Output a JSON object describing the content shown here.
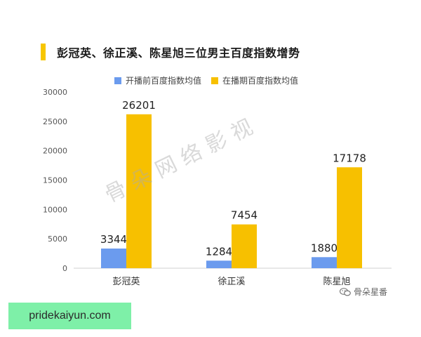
{
  "title": "彭冠英、徐正溪、陈星旭三位男主百度指数增势",
  "watermark": "骨朵网络影视",
  "brand_label": "骨朵星番",
  "site_label": "pridekaiyun.com",
  "colors": {
    "accent": "#F7C600",
    "series1": "#6B9BEE",
    "series2": "#F7C000"
  },
  "chart_data": {
    "type": "bar",
    "categories": [
      "彭冠英",
      "徐正溪",
      "陈星旭"
    ],
    "series": [
      {
        "name": "开播前百度指数均值",
        "values": [
          3344,
          1284,
          1880
        ]
      },
      {
        "name": "在播期百度指数均值",
        "values": [
          26201,
          7454,
          17178
        ]
      }
    ],
    "ylim": [
      0,
      30000
    ],
    "yticks": [
      "0",
      "5000",
      "10000",
      "15000",
      "20000",
      "25000",
      "30000"
    ],
    "grid": false,
    "legend": "top"
  }
}
